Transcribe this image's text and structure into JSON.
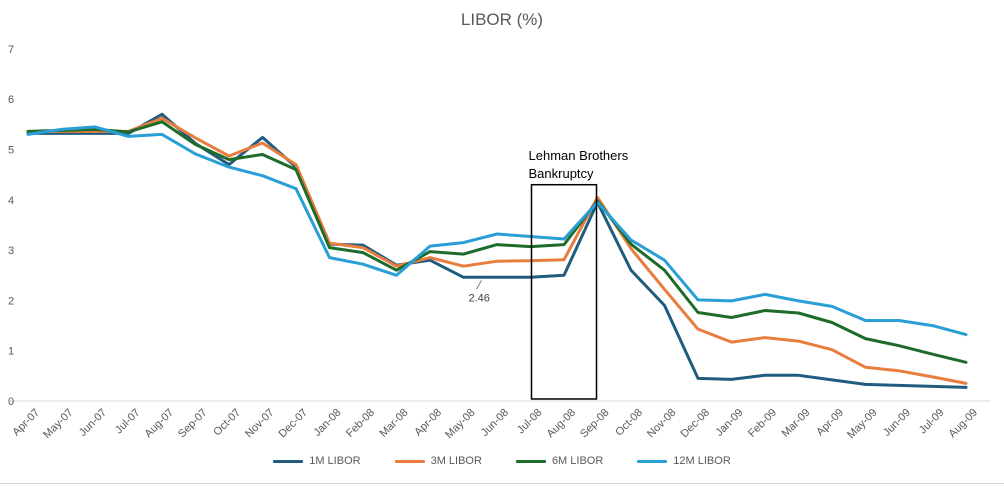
{
  "chart_data": {
    "type": "line",
    "title": "LIBOR (%)",
    "xlabel": "",
    "ylabel": "",
    "ylim": [
      0,
      7
    ],
    "yticks": [
      "0",
      "1",
      "2",
      "3",
      "4",
      "5",
      "6",
      "7"
    ],
    "grid": false,
    "legend_position": "bottom",
    "categories": [
      "Apr-07",
      "May-07",
      "Jun-07",
      "Jul-07",
      "Aug-07",
      "Sep-07",
      "Oct-07",
      "Nov-07",
      "Dec-07",
      "Jan-08",
      "Feb-08",
      "Mar-08",
      "Apr-08",
      "May-08",
      "Jun-08",
      "Jul-08",
      "Aug-08",
      "Sep-08",
      "Oct-08",
      "Nov-08",
      "Dec-08",
      "Jan-09",
      "Feb-09",
      "Mar-09",
      "Apr-09",
      "May-09",
      "Jun-09",
      "Jul-09",
      "Aug-09"
    ],
    "series": [
      {
        "name": "1M LIBOR",
        "color": "#1f5c80",
        "values": [
          5.32,
          5.32,
          5.32,
          5.32,
          5.7,
          5.12,
          4.7,
          5.24,
          4.65,
          3.12,
          3.1,
          2.7,
          2.8,
          2.46,
          2.46,
          2.46,
          2.5,
          3.95,
          2.6,
          1.9,
          0.45,
          0.43,
          0.51,
          0.51,
          0.42,
          0.33,
          0.31,
          0.29,
          0.27
        ]
      },
      {
        "name": "3M LIBOR",
        "color": "#e87d3e",
        "values": [
          5.35,
          5.36,
          5.36,
          5.36,
          5.62,
          5.23,
          4.87,
          5.13,
          4.7,
          3.14,
          3.05,
          2.68,
          2.85,
          2.68,
          2.78,
          2.79,
          2.81,
          4.05,
          3.03,
          2.22,
          1.43,
          1.17,
          1.26,
          1.19,
          1.02,
          0.67,
          0.6,
          0.48,
          0.35
        ]
      },
      {
        "name": "6M LIBOR",
        "color": "#1e6b2a",
        "values": [
          5.36,
          5.38,
          5.4,
          5.35,
          5.55,
          5.1,
          4.8,
          4.9,
          4.6,
          3.05,
          2.95,
          2.6,
          2.97,
          2.92,
          3.11,
          3.07,
          3.11,
          3.98,
          3.12,
          2.6,
          1.76,
          1.66,
          1.8,
          1.75,
          1.56,
          1.24,
          1.1,
          0.93,
          0.77
        ]
      },
      {
        "name": "12M LIBOR",
        "color": "#2a9fd6",
        "values": [
          5.3,
          5.4,
          5.45,
          5.26,
          5.3,
          4.91,
          4.65,
          4.48,
          4.22,
          2.85,
          2.72,
          2.5,
          3.08,
          3.15,
          3.32,
          3.27,
          3.22,
          3.95,
          3.2,
          2.8,
          2.01,
          1.99,
          2.12,
          1.99,
          1.88,
          1.6,
          1.6,
          1.5,
          1.32
        ]
      }
    ],
    "annotations": [
      {
        "text_lines": [
          "Lehman Brothers",
          "Bankruptcy"
        ],
        "x_from": "Jul-08",
        "x_to": "Sep-08",
        "y_top": 4.3,
        "y_bottom": 0.04
      },
      {
        "label": "2.46",
        "x": "May-08",
        "y": 2.46
      }
    ]
  }
}
